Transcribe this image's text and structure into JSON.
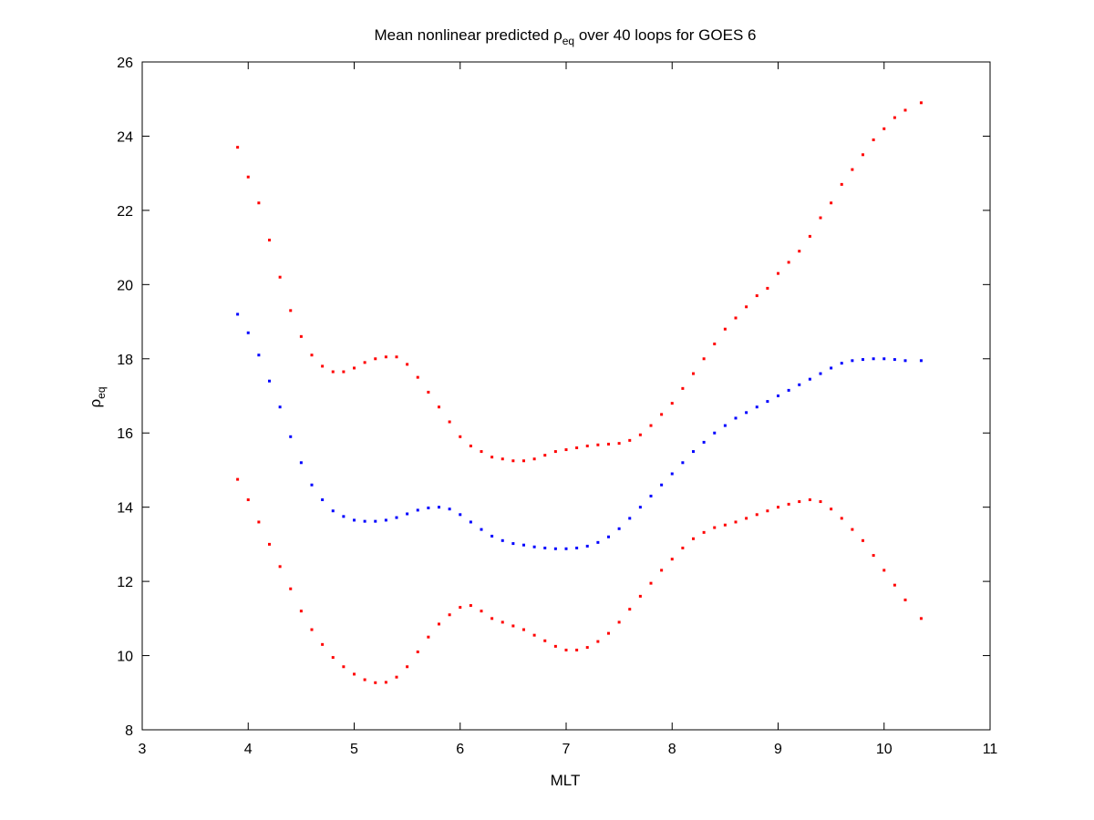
{
  "chart_data": {
    "type": "scatter",
    "title": {
      "prefix": "Mean nonlinear predicted ",
      "symbol": "ρ",
      "subscript": "eq",
      "suffix": " over 40 loops for GOES 6"
    },
    "xlabel": "MLT",
    "ylabel": {
      "symbol": "ρ",
      "subscript": "eq"
    },
    "xlim": [
      3,
      11
    ],
    "ylim": [
      8,
      26
    ],
    "xticks": [
      3,
      4,
      5,
      6,
      7,
      8,
      9,
      10,
      11
    ],
    "yticks": [
      8,
      10,
      12,
      14,
      16,
      18,
      20,
      22,
      24,
      26
    ],
    "grid": false,
    "series": [
      {
        "color": "#ff0000",
        "marker": "dot",
        "points": [
          [
            3.9,
            23.7
          ],
          [
            4.0,
            22.9
          ],
          [
            4.1,
            22.2
          ],
          [
            4.2,
            21.2
          ],
          [
            4.3,
            20.2
          ],
          [
            4.4,
            19.3
          ],
          [
            4.5,
            18.6
          ],
          [
            4.6,
            18.1
          ],
          [
            4.7,
            17.8
          ],
          [
            4.8,
            17.65
          ],
          [
            4.9,
            17.65
          ],
          [
            5.0,
            17.75
          ],
          [
            5.1,
            17.9
          ],
          [
            5.2,
            18.0
          ],
          [
            5.3,
            18.05
          ],
          [
            5.4,
            18.05
          ],
          [
            5.5,
            17.85
          ],
          [
            5.6,
            17.5
          ],
          [
            5.7,
            17.1
          ],
          [
            5.8,
            16.7
          ],
          [
            5.9,
            16.3
          ],
          [
            6.0,
            15.9
          ],
          [
            6.1,
            15.65
          ],
          [
            6.2,
            15.5
          ],
          [
            6.3,
            15.35
          ],
          [
            6.4,
            15.3
          ],
          [
            6.5,
            15.25
          ],
          [
            6.6,
            15.25
          ],
          [
            6.7,
            15.3
          ],
          [
            6.8,
            15.4
          ],
          [
            6.9,
            15.5
          ],
          [
            7.0,
            15.55
          ],
          [
            7.1,
            15.6
          ],
          [
            7.2,
            15.65
          ],
          [
            7.3,
            15.68
          ],
          [
            7.4,
            15.7
          ],
          [
            7.5,
            15.72
          ],
          [
            7.6,
            15.8
          ],
          [
            7.7,
            15.95
          ],
          [
            7.8,
            16.2
          ],
          [
            7.9,
            16.5
          ],
          [
            8.0,
            16.8
          ],
          [
            8.1,
            17.2
          ],
          [
            8.2,
            17.6
          ],
          [
            8.3,
            18.0
          ],
          [
            8.4,
            18.4
          ],
          [
            8.5,
            18.8
          ],
          [
            8.6,
            19.1
          ],
          [
            8.7,
            19.4
          ],
          [
            8.8,
            19.7
          ],
          [
            8.9,
            19.9
          ],
          [
            9.0,
            20.3
          ],
          [
            9.1,
            20.6
          ],
          [
            9.2,
            20.9
          ],
          [
            9.3,
            21.3
          ],
          [
            9.4,
            21.8
          ],
          [
            9.5,
            22.2
          ],
          [
            9.6,
            22.7
          ],
          [
            9.7,
            23.1
          ],
          [
            9.8,
            23.5
          ],
          [
            9.9,
            23.9
          ],
          [
            10.0,
            24.2
          ],
          [
            10.1,
            24.5
          ],
          [
            10.2,
            24.7
          ],
          [
            10.35,
            24.9
          ]
        ]
      },
      {
        "color": "#0000ff",
        "marker": "dot",
        "points": [
          [
            3.9,
            19.2
          ],
          [
            4.0,
            18.7
          ],
          [
            4.1,
            18.1
          ],
          [
            4.2,
            17.4
          ],
          [
            4.3,
            16.7
          ],
          [
            4.4,
            15.9
          ],
          [
            4.5,
            15.2
          ],
          [
            4.6,
            14.6
          ],
          [
            4.7,
            14.2
          ],
          [
            4.8,
            13.9
          ],
          [
            4.9,
            13.75
          ],
          [
            5.0,
            13.65
          ],
          [
            5.1,
            13.62
          ],
          [
            5.2,
            13.62
          ],
          [
            5.3,
            13.65
          ],
          [
            5.4,
            13.72
          ],
          [
            5.5,
            13.82
          ],
          [
            5.6,
            13.92
          ],
          [
            5.7,
            13.98
          ],
          [
            5.8,
            14.0
          ],
          [
            5.9,
            13.95
          ],
          [
            6.0,
            13.8
          ],
          [
            6.1,
            13.6
          ],
          [
            6.2,
            13.4
          ],
          [
            6.3,
            13.22
          ],
          [
            6.4,
            13.1
          ],
          [
            6.5,
            13.02
          ],
          [
            6.6,
            12.98
          ],
          [
            6.7,
            12.93
          ],
          [
            6.8,
            12.9
          ],
          [
            6.9,
            12.88
          ],
          [
            7.0,
            12.88
          ],
          [
            7.1,
            12.9
          ],
          [
            7.2,
            12.95
          ],
          [
            7.3,
            13.05
          ],
          [
            7.4,
            13.2
          ],
          [
            7.5,
            13.42
          ],
          [
            7.6,
            13.7
          ],
          [
            7.7,
            14.0
          ],
          [
            7.8,
            14.3
          ],
          [
            7.9,
            14.6
          ],
          [
            8.0,
            14.9
          ],
          [
            8.1,
            15.2
          ],
          [
            8.2,
            15.5
          ],
          [
            8.3,
            15.75
          ],
          [
            8.4,
            16.0
          ],
          [
            8.5,
            16.2
          ],
          [
            8.6,
            16.4
          ],
          [
            8.7,
            16.55
          ],
          [
            8.8,
            16.7
          ],
          [
            8.9,
            16.85
          ],
          [
            9.0,
            17.0
          ],
          [
            9.1,
            17.15
          ],
          [
            9.2,
            17.3
          ],
          [
            9.3,
            17.45
          ],
          [
            9.4,
            17.6
          ],
          [
            9.5,
            17.75
          ],
          [
            9.6,
            17.88
          ],
          [
            9.7,
            17.95
          ],
          [
            9.8,
            17.98
          ],
          [
            9.9,
            18.0
          ],
          [
            10.0,
            18.0
          ],
          [
            10.1,
            17.98
          ],
          [
            10.2,
            17.95
          ],
          [
            10.35,
            17.95
          ]
        ]
      },
      {
        "color": "#ff0000",
        "marker": "dot",
        "points": [
          [
            3.9,
            14.75
          ],
          [
            4.0,
            14.2
          ],
          [
            4.1,
            13.6
          ],
          [
            4.2,
            13.0
          ],
          [
            4.3,
            12.4
          ],
          [
            4.4,
            11.8
          ],
          [
            4.5,
            11.2
          ],
          [
            4.6,
            10.7
          ],
          [
            4.7,
            10.3
          ],
          [
            4.8,
            9.95
          ],
          [
            4.9,
            9.7
          ],
          [
            5.0,
            9.5
          ],
          [
            5.1,
            9.35
          ],
          [
            5.2,
            9.27
          ],
          [
            5.3,
            9.28
          ],
          [
            5.4,
            9.42
          ],
          [
            5.5,
            9.7
          ],
          [
            5.6,
            10.1
          ],
          [
            5.7,
            10.5
          ],
          [
            5.8,
            10.85
          ],
          [
            5.9,
            11.1
          ],
          [
            6.0,
            11.3
          ],
          [
            6.1,
            11.35
          ],
          [
            6.2,
            11.2
          ],
          [
            6.3,
            11.0
          ],
          [
            6.4,
            10.9
          ],
          [
            6.5,
            10.8
          ],
          [
            6.6,
            10.7
          ],
          [
            6.7,
            10.55
          ],
          [
            6.8,
            10.4
          ],
          [
            6.9,
            10.25
          ],
          [
            7.0,
            10.15
          ],
          [
            7.1,
            10.15
          ],
          [
            7.2,
            10.22
          ],
          [
            7.3,
            10.38
          ],
          [
            7.4,
            10.6
          ],
          [
            7.5,
            10.9
          ],
          [
            7.6,
            11.25
          ],
          [
            7.7,
            11.6
          ],
          [
            7.8,
            11.95
          ],
          [
            7.9,
            12.3
          ],
          [
            8.0,
            12.6
          ],
          [
            8.1,
            12.9
          ],
          [
            8.2,
            13.15
          ],
          [
            8.3,
            13.32
          ],
          [
            8.4,
            13.45
          ],
          [
            8.5,
            13.52
          ],
          [
            8.6,
            13.6
          ],
          [
            8.7,
            13.7
          ],
          [
            8.8,
            13.8
          ],
          [
            8.9,
            13.9
          ],
          [
            9.0,
            14.0
          ],
          [
            9.1,
            14.08
          ],
          [
            9.2,
            14.15
          ],
          [
            9.3,
            14.2
          ],
          [
            9.4,
            14.15
          ],
          [
            9.5,
            13.95
          ],
          [
            9.6,
            13.7
          ],
          [
            9.7,
            13.4
          ],
          [
            9.8,
            13.1
          ],
          [
            9.9,
            12.7
          ],
          [
            10.0,
            12.3
          ],
          [
            10.1,
            11.9
          ],
          [
            10.2,
            11.5
          ],
          [
            10.35,
            11.0
          ]
        ]
      }
    ]
  }
}
